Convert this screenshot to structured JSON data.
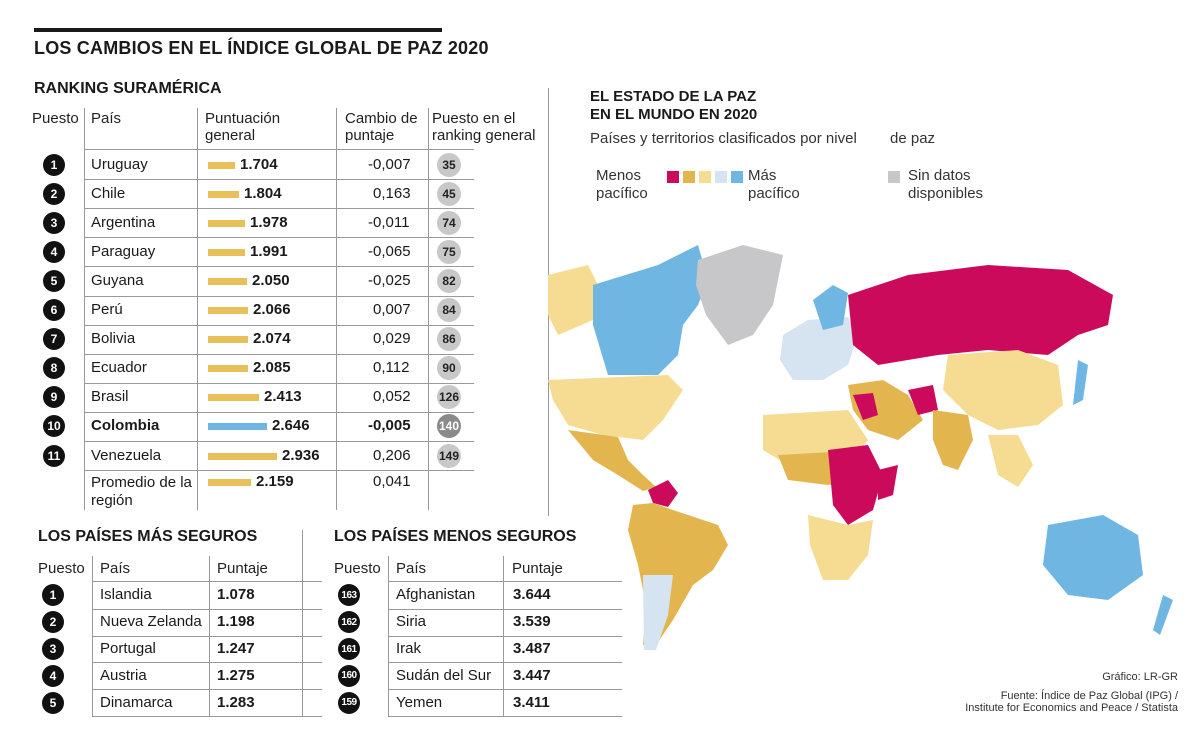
{
  "title": "LOS CAMBIOS EN EL ÍNDICE GLOBAL DE PAZ 2020",
  "ranking": {
    "title": "RANKING SURAMÉRICA",
    "headers": {
      "puesto": "Puesto",
      "pais": "País",
      "puntuacion": "Puntuación general",
      "cambio": "Cambio de puntaje",
      "ranking": "Puesto en el ranking general"
    },
    "rows": [
      {
        "n": "1",
        "pais": "Uruguay",
        "score": "1.704",
        "value": 1.704,
        "cambio": "-0,007",
        "rank": "35"
      },
      {
        "n": "2",
        "pais": "Chile",
        "score": "1.804",
        "value": 1.804,
        "cambio": "0,163",
        "rank": "45"
      },
      {
        "n": "3",
        "pais": "Argentina",
        "score": "1.978",
        "value": 1.978,
        "cambio": "-0,011",
        "rank": "74"
      },
      {
        "n": "4",
        "pais": "Paraguay",
        "score": "1.991",
        "value": 1.991,
        "cambio": "-0,065",
        "rank": "75"
      },
      {
        "n": "5",
        "pais": "Guyana",
        "score": "2.050",
        "value": 2.05,
        "cambio": "-0,025",
        "rank": "82"
      },
      {
        "n": "6",
        "pais": "Perú",
        "score": "2.066",
        "value": 2.066,
        "cambio": "0,007",
        "rank": "84"
      },
      {
        "n": "7",
        "pais": "Bolivia",
        "score": "2.074",
        "value": 2.074,
        "cambio": "0,029",
        "rank": "86"
      },
      {
        "n": "8",
        "pais": "Ecuador",
        "score": "2.085",
        "value": 2.085,
        "cambio": "0,112",
        "rank": "90"
      },
      {
        "n": "9",
        "pais": "Brasil",
        "score": "2.413",
        "value": 2.413,
        "cambio": "0,052",
        "rank": "126"
      },
      {
        "n": "10",
        "pais": "Colombia",
        "score": "2.646",
        "value": 2.646,
        "cambio": "-0,005",
        "rank": "140",
        "highlight": true
      },
      {
        "n": "11",
        "pais": "Venezuela",
        "score": "2.936",
        "value": 2.936,
        "cambio": "0,206",
        "rank": "149"
      }
    ],
    "promedio": {
      "label": "Promedio de la región",
      "score": "2.159",
      "value": 2.159,
      "cambio": "0,041"
    }
  },
  "seguros": {
    "title": "LOS PAÍSES MÁS SEGUROS",
    "headers": {
      "puesto": "Puesto",
      "pais": "País",
      "puntaje": "Puntaje"
    },
    "rows": [
      {
        "n": "1",
        "pais": "Islandia",
        "score": "1.078"
      },
      {
        "n": "2",
        "pais": "Nueva Zelanda",
        "score": "1.198"
      },
      {
        "n": "3",
        "pais": "Portugal",
        "score": "1.247"
      },
      {
        "n": "4",
        "pais": "Austria",
        "score": "1.275"
      },
      {
        "n": "5",
        "pais": "Dinamarca",
        "score": "1.283"
      }
    ]
  },
  "inseguros": {
    "title": "LOS PAÍSES MENOS SEGUROS",
    "headers": {
      "puesto": "Puesto",
      "pais": "País",
      "puntaje": "Puntaje"
    },
    "rows": [
      {
        "n": "163",
        "pais": "Afghanistan",
        "score": "3.644"
      },
      {
        "n": "162",
        "pais": "Siria",
        "score": "3.539"
      },
      {
        "n": "161",
        "pais": "Irak",
        "score": "3.487"
      },
      {
        "n": "160",
        "pais": "Sudán del Sur",
        "score": "3.447"
      },
      {
        "n": "159",
        "pais": "Yemen",
        "score": "3.411"
      }
    ]
  },
  "map": {
    "title_line1": "EL ESTADO DE LA PAZ",
    "title_line2": "EN EL MUNDO EN 2020",
    "subtitle_a": "Países y territorios clasificados por nivel",
    "subtitle_b": "de paz",
    "legend": {
      "menos_1": "Menos",
      "menos_2": "pacífico",
      "mas_1": "Más",
      "mas_2": "pacífico",
      "sin_1": "Sin datos",
      "sin_2": "disponibles",
      "colors": [
        "#cc0a5b",
        "#e3b54f",
        "#f6dc92",
        "#d6e4f2",
        "#6fb6e3"
      ],
      "nodata_color": "#c7c7c9"
    }
  },
  "credit": "Gráfico: LR-GR",
  "source_1": "Fuente: Índice de Paz Global (IPG) /",
  "source_2": "Institute for Economics and Peace / Statista",
  "chart_data": {
    "type": "bar",
    "title": "RANKING SURAMÉRICA",
    "categories": [
      "Uruguay",
      "Chile",
      "Argentina",
      "Paraguay",
      "Guyana",
      "Perú",
      "Bolivia",
      "Ecuador",
      "Brasil",
      "Colombia",
      "Venezuela",
      "Promedio de la región"
    ],
    "values": [
      1.704,
      1.804,
      1.978,
      1.991,
      2.05,
      2.066,
      2.074,
      2.085,
      2.413,
      2.646,
      2.936,
      2.159
    ],
    "ylabel": "Puntuación general"
  }
}
